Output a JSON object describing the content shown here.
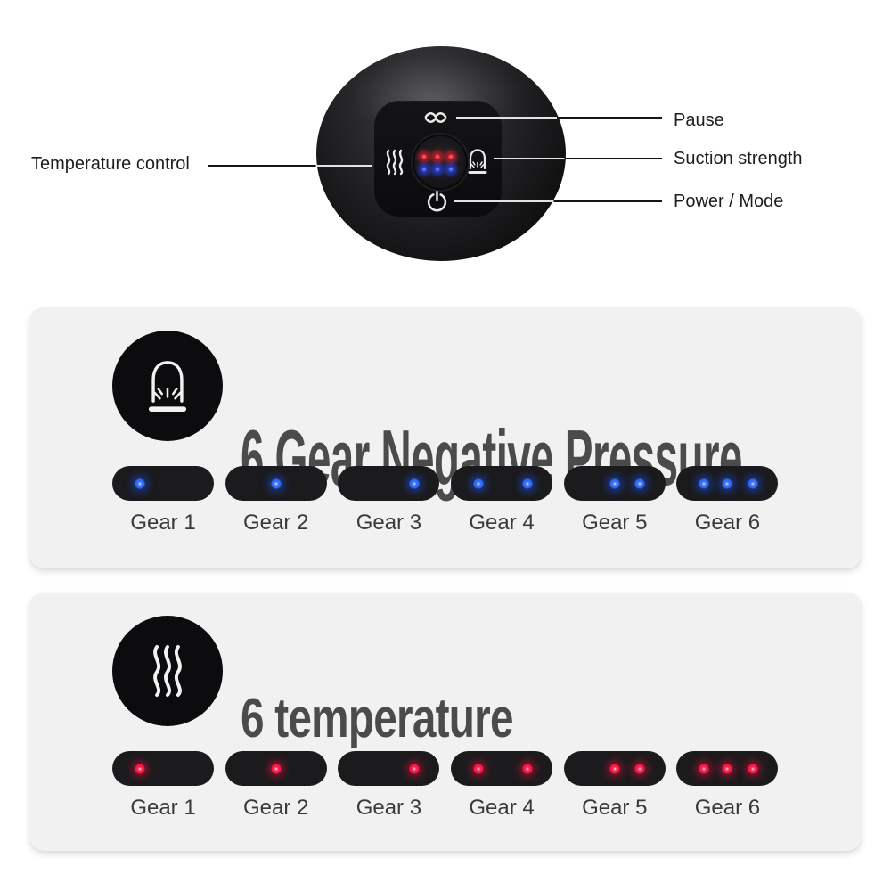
{
  "device": {
    "callouts": {
      "pause": "Pause",
      "temperature_control": "Temperature control",
      "suction_strength": "Suction strength",
      "power_mode": "Power / Mode"
    },
    "led_rows": [
      {
        "color": "#f5202e",
        "count": 3
      },
      {
        "color": "#2a46ff",
        "count": 3
      }
    ]
  },
  "colors": {
    "panel_background": "#f1f1f2",
    "pill_background": "#1b1b1d",
    "blue_dot": "#2e6bff",
    "red_dot": "#ff1744",
    "title_gray": "#4b4b4b"
  },
  "panels": [
    {
      "title": "6 Gear Negative Pressure",
      "icon": "cupping-icon",
      "dot_color": "#2e6bff",
      "dot_glow": "rgba(25,80,255,0.55)",
      "gears": [
        {
          "label": "Gear 1",
          "slots": [
            1
          ]
        },
        {
          "label": "Gear 2",
          "slots": [
            2
          ]
        },
        {
          "label": "Gear 3",
          "slots": [
            3
          ]
        },
        {
          "label": "Gear 4",
          "slots": [
            1,
            3
          ]
        },
        {
          "label": "Gear 5",
          "slots": [
            2,
            3
          ]
        },
        {
          "label": "Gear 6",
          "slots": [
            1,
            2,
            3
          ]
        }
      ]
    },
    {
      "title": "6 temperature",
      "icon": "heat-icon",
      "dot_color": "#ff1744",
      "dot_glow": "rgba(240,10,60,0.55)",
      "gears": [
        {
          "label": "Gear 1",
          "slots": [
            1
          ]
        },
        {
          "label": "Gear 2",
          "slots": [
            2
          ]
        },
        {
          "label": "Gear 3",
          "slots": [
            3
          ]
        },
        {
          "label": "Gear 4",
          "slots": [
            1,
            3
          ]
        },
        {
          "label": "Gear 5",
          "slots": [
            2,
            3
          ]
        },
        {
          "label": "Gear 6",
          "slots": [
            1,
            2,
            3
          ]
        }
      ]
    }
  ]
}
